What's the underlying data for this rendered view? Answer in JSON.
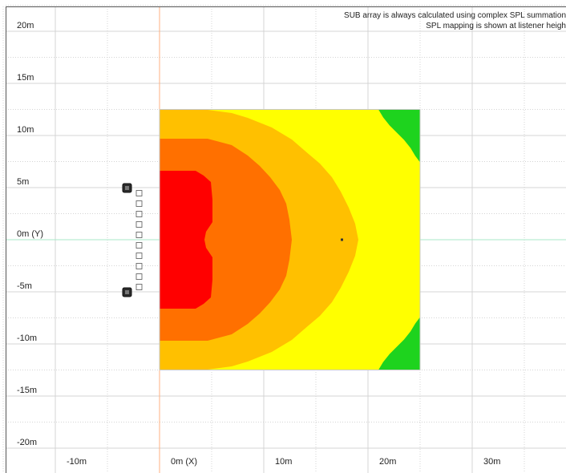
{
  "notes": {
    "line1": "SUB array is always calculated using complex SPL summation",
    "line2": "SPL mapping is shown at listener heigh"
  },
  "axes": {
    "x_ticks": [
      {
        "value": -10,
        "label": "-10m"
      },
      {
        "value": 0,
        "label": "0m (X)"
      },
      {
        "value": 10,
        "label": "10m"
      },
      {
        "value": 20,
        "label": "20m"
      },
      {
        "value": 30,
        "label": "30m"
      }
    ],
    "y_ticks": [
      {
        "value": 20,
        "label": "20m"
      },
      {
        "value": 15,
        "label": "15m"
      },
      {
        "value": 10,
        "label": "10m"
      },
      {
        "value": 5,
        "label": "5m"
      },
      {
        "value": 0,
        "label": "0m (Y)"
      },
      {
        "value": -5,
        "label": "-5m"
      },
      {
        "value": -10,
        "label": "-10m"
      },
      {
        "value": -15,
        "label": "-15m"
      },
      {
        "value": -20,
        "label": "-20m"
      }
    ]
  },
  "map": {
    "area": {
      "x_min": 0,
      "x_max": 25,
      "y_min": -12.5,
      "y_max": 12.5
    },
    "zones": [
      {
        "name": "green",
        "color": "#1ed31e"
      },
      {
        "name": "yellow",
        "color": "#ffff00"
      },
      {
        "name": "light-orange",
        "color": "#ffc000"
      },
      {
        "name": "dark-orange",
        "color": "#ff7000"
      },
      {
        "name": "red",
        "color": "#ff0000"
      }
    ],
    "listener_point": {
      "x": 17.5,
      "y": 0
    }
  },
  "array": {
    "x": -2,
    "cabinets_y": [
      4.5,
      3.5,
      2.5,
      1.5,
      0.5,
      -0.5,
      -1.5,
      -2.5,
      -3.5,
      -4.5
    ],
    "end_markers_y": [
      5,
      -5
    ]
  },
  "colors": {
    "grid": "#d4d4d4",
    "vertical_ref": "#ffb080",
    "horizontal_ref": "#a8e8c8",
    "marker": "#333333"
  }
}
